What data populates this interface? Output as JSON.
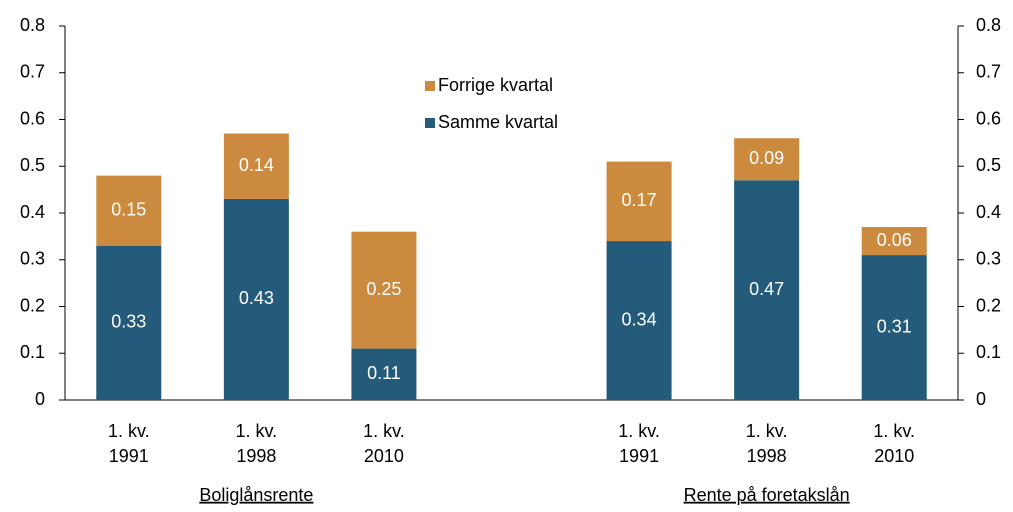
{
  "chart_data": {
    "type": "stacked_bar",
    "categories": [
      "1. kv.\n1991",
      "1. kv.\n1998",
      "1. kv.\n2010",
      null,
      "1. kv.\n1991",
      "1. kv.\n1998",
      "1. kv.\n2010"
    ],
    "group_labels": [
      "Boliglånsrente",
      "Rente på foretakslån"
    ],
    "series": [
      {
        "name": "Samme kvartal",
        "color": "#245a7a",
        "values": [
          0.33,
          0.43,
          0.11,
          null,
          0.34,
          0.47,
          0.31
        ]
      },
      {
        "name": "Forrige kvartal",
        "color": "#cc8a3f",
        "values": [
          0.15,
          0.14,
          0.25,
          null,
          0.17,
          0.09,
          0.06
        ]
      }
    ],
    "ylim": [
      0,
      0.8
    ],
    "yticks": [
      0,
      0.1,
      0.2,
      0.3,
      0.4,
      0.5,
      0.6,
      0.7,
      0.8
    ],
    "y2lim": [
      0,
      0.8
    ],
    "y2ticks": [
      0,
      0.1,
      0.2,
      0.3,
      0.4,
      0.5,
      0.6,
      0.7,
      0.8
    ],
    "grid": false
  }
}
